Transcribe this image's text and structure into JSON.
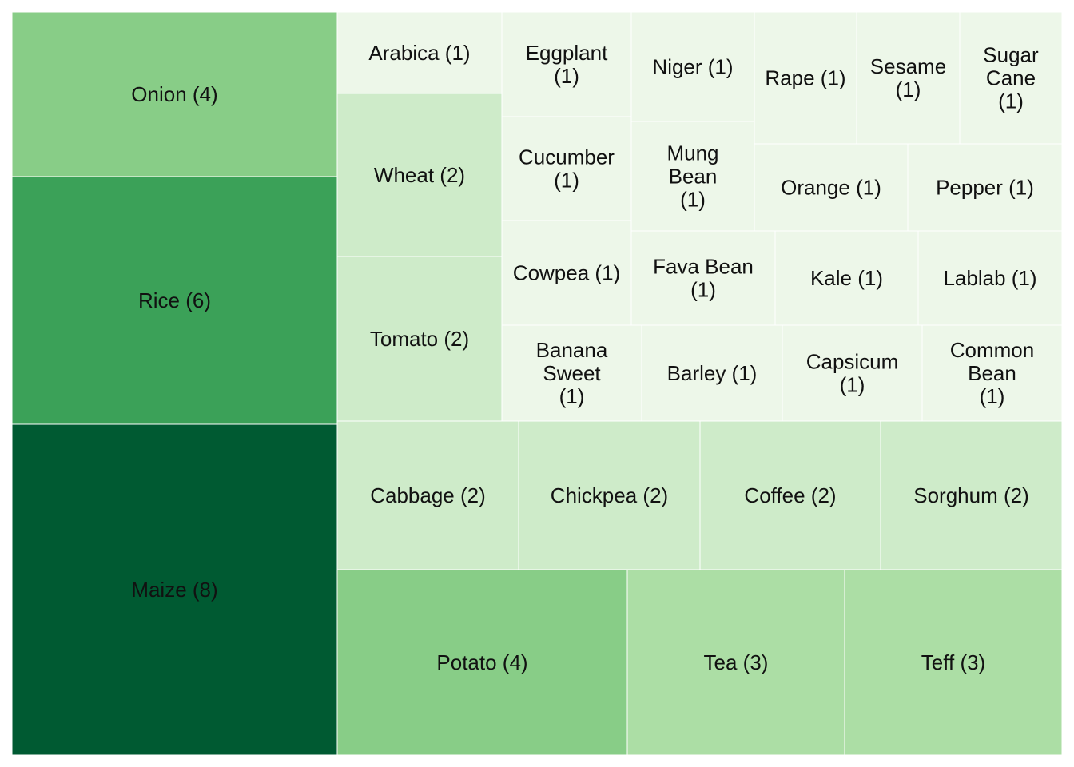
{
  "chart_data": {
    "type": "treemap",
    "title": "",
    "label_format": "{name} ({value})",
    "items": [
      {
        "name": "Maize",
        "value": 8
      },
      {
        "name": "Rice",
        "value": 6
      },
      {
        "name": "Onion",
        "value": 4
      },
      {
        "name": "Potato",
        "value": 4
      },
      {
        "name": "Tea",
        "value": 3
      },
      {
        "name": "Teff",
        "value": 3
      },
      {
        "name": "Cabbage",
        "value": 2
      },
      {
        "name": "Chickpea",
        "value": 2
      },
      {
        "name": "Coffee",
        "value": 2
      },
      {
        "name": "Sorghum",
        "value": 2
      },
      {
        "name": "Tomato",
        "value": 2
      },
      {
        "name": "Wheat",
        "value": 2
      },
      {
        "name": "Arabica",
        "value": 1
      },
      {
        "name": "Banana Sweet",
        "value": 1
      },
      {
        "name": "Barley",
        "value": 1
      },
      {
        "name": "Capsicum",
        "value": 1
      },
      {
        "name": "Common Bean",
        "value": 1
      },
      {
        "name": "Cowpea",
        "value": 1
      },
      {
        "name": "Cucumber",
        "value": 1
      },
      {
        "name": "Eggplant",
        "value": 1
      },
      {
        "name": "Fava Bean",
        "value": 1
      },
      {
        "name": "Kale",
        "value": 1
      },
      {
        "name": "Lablab",
        "value": 1
      },
      {
        "name": "Mung Bean",
        "value": 1
      },
      {
        "name": "Niger",
        "value": 1
      },
      {
        "name": "Orange",
        "value": 1
      },
      {
        "name": "Pepper",
        "value": 1
      },
      {
        "name": "Rape",
        "value": 1
      },
      {
        "name": "Sesame",
        "value": 1
      },
      {
        "name": "Sugar Cane",
        "value": 1
      }
    ],
    "color_scale": {
      "1": "#edf7e9",
      "2": "#ceebc9",
      "3": "#acdea5",
      "4": "#88cd87",
      "6": "#3ba158",
      "8": "#005a32"
    }
  }
}
